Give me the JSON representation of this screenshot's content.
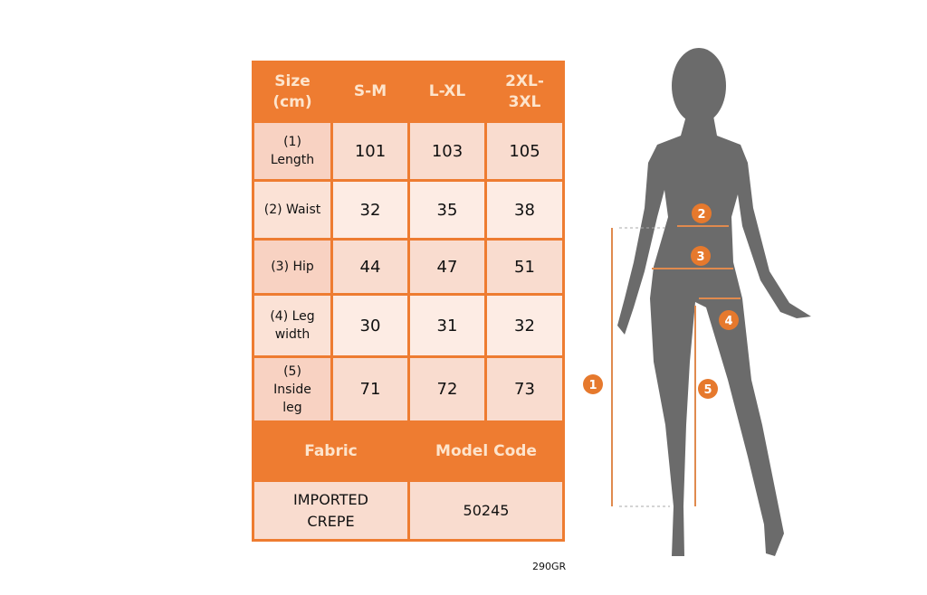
{
  "table": {
    "header": [
      "Size\n(cm)",
      "S-M",
      "L-XL",
      "2XL-\n3XL"
    ],
    "rows": [
      {
        "label": "(1)\nLength",
        "values": [
          "101",
          "103",
          "105"
        ]
      },
      {
        "label": "(2) Waist",
        "values": [
          "32",
          "35",
          "38"
        ]
      },
      {
        "label": "(3) Hip",
        "values": [
          "44",
          "47",
          "51"
        ]
      },
      {
        "label": "(4) Leg\nwidth",
        "values": [
          "30",
          "31",
          "32"
        ]
      },
      {
        "label": "(5)\nInside\nleg",
        "values": [
          "71",
          "72",
          "73"
        ]
      }
    ],
    "footer_headers": [
      "Fabric",
      "Model Code"
    ],
    "footer_values": [
      "IMPORTED\nCREPE",
      "50245"
    ]
  },
  "figure": {
    "markers": [
      "1",
      "2",
      "3",
      "4",
      "5"
    ]
  },
  "code": "290GR",
  "colors": {
    "accent": "#ee7c31",
    "silhouette": "#6b6b6b"
  }
}
